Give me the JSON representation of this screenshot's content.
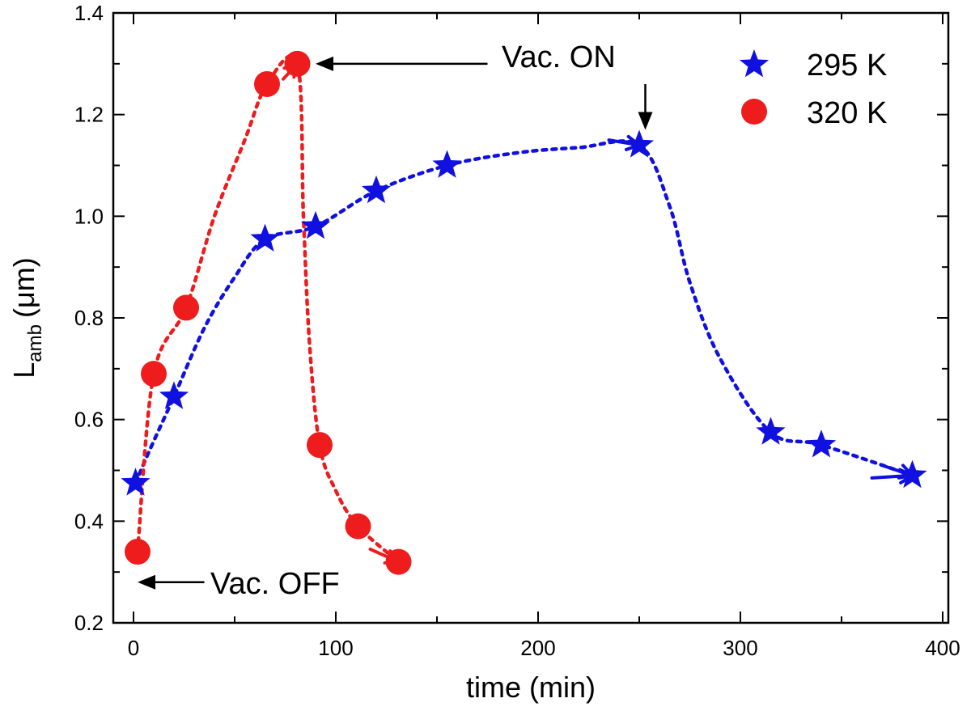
{
  "chart_data": {
    "type": "scatter",
    "title": "",
    "xlabel": "time (min)",
    "ylabel": {
      "main": "L",
      "subscript": "amb",
      "unit": "(μm)"
    },
    "xlim": [
      -10,
      400
    ],
    "ylim": [
      0.2,
      1.4
    ],
    "xticks": [
      0,
      100,
      200,
      300,
      400
    ],
    "xtick_labels": [
      "0",
      "100",
      "200",
      "300",
      "400"
    ],
    "yticks": [
      0.2,
      0.4,
      0.6,
      0.8,
      1.0,
      1.2,
      1.4
    ],
    "ytick_labels": [
      "0.2",
      "0.4",
      "0.6",
      "0.8",
      "1.0",
      "1.2",
      "1.4"
    ],
    "grid": false,
    "legend_position": "top-right",
    "series": [
      {
        "name": "295 K",
        "marker": "star",
        "color": "#1010e0",
        "line_style": "dotted",
        "x": [
          1,
          20,
          65,
          90,
          120,
          155,
          250,
          315,
          340,
          385
        ],
        "y": [
          0.475,
          0.645,
          0.955,
          0.98,
          1.05,
          1.1,
          1.14,
          0.575,
          0.55,
          0.49
        ],
        "arrows": [
          {
            "from": [
              235,
              1.15
            ],
            "to": [
              250,
              1.14
            ]
          },
          {
            "from": [
              370,
              0.51
            ],
            "to": [
              385,
              0.49
            ]
          },
          {
            "from": [
              365,
              0.485
            ],
            "to": [
              385,
              0.49
            ]
          }
        ]
      },
      {
        "name": "320 K",
        "marker": "circle",
        "color": "#ee1c1c",
        "line_style": "dotted",
        "x": [
          2,
          10,
          26,
          66,
          81,
          92,
          111,
          131
        ],
        "y": [
          0.34,
          0.69,
          0.82,
          1.26,
          1.3,
          0.55,
          0.39,
          0.32
        ],
        "arrows": [
          {
            "from": [
              74,
              1.27
            ],
            "to": [
              81,
              1.3
            ]
          },
          {
            "from": [
              117,
              0.345
            ],
            "to": [
              131,
              0.32
            ]
          }
        ]
      }
    ],
    "annotations": [
      {
        "text": "Vac. ON",
        "arrow_tip": [
          90,
          1.3
        ],
        "arrow_tail": [
          175,
          1.3
        ]
      },
      {
        "text": "Vac. OFF",
        "arrow_tip": [
          2,
          0.28
        ],
        "arrow_tail": [
          35,
          0.28
        ]
      },
      {
        "arrow_tip": [
          253,
          1.17
        ],
        "arrow_tail": [
          253,
          1.26
        ]
      }
    ],
    "curves": [
      {
        "series": "295 K",
        "x": [
          1,
          8,
          20,
          35,
          50,
          65,
          90,
          120,
          155,
          190,
          220,
          250,
          265,
          275,
          290,
          315,
          340,
          385
        ],
        "y": [
          0.475,
          0.54,
          0.645,
          0.78,
          0.88,
          0.955,
          0.98,
          1.05,
          1.1,
          1.125,
          1.135,
          1.14,
          1.02,
          0.87,
          0.72,
          0.575,
          0.55,
          0.49
        ]
      },
      {
        "series": "320 K",
        "x": [
          2,
          10,
          26,
          40,
          55,
          66,
          81,
          84,
          87,
          92,
          100,
          111,
          131
        ],
        "y": [
          0.34,
          0.69,
          0.82,
          1.0,
          1.15,
          1.26,
          1.3,
          1.0,
          0.75,
          0.55,
          0.46,
          0.39,
          0.32
        ]
      }
    ]
  }
}
